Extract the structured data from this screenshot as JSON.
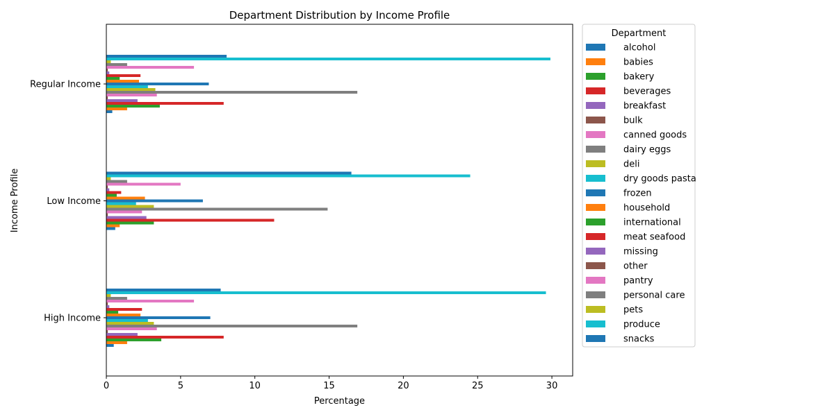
{
  "chart_data": {
    "type": "bar",
    "orientation": "horizontal",
    "title": "Department Distribution by Income Profile",
    "xlabel": "Percentage",
    "ylabel": "Income Profile",
    "xlim": [
      0,
      31.4
    ],
    "xticks": [
      0,
      5,
      10,
      15,
      20,
      25,
      30
    ],
    "grid": false,
    "legend_title": "Department",
    "legend_position": "outside-right",
    "categories": [
      "High Income",
      "Low Income",
      "Regular Income"
    ],
    "series": [
      {
        "name": "alcohol",
        "color": "#1f77b4",
        "values": [
          0.5,
          0.6,
          0.4
        ]
      },
      {
        "name": "babies",
        "color": "#ff7f0e",
        "values": [
          1.4,
          0.9,
          1.4
        ]
      },
      {
        "name": "bakery",
        "color": "#2ca02c",
        "values": [
          3.7,
          3.2,
          3.6
        ]
      },
      {
        "name": "beverages",
        "color": "#d62728",
        "values": [
          7.9,
          11.3,
          7.9
        ]
      },
      {
        "name": "breakfast",
        "color": "#9467bd",
        "values": [
          2.1,
          2.7,
          2.1
        ]
      },
      {
        "name": "bulk",
        "color": "#8c564b",
        "values": [
          0.1,
          0.1,
          0.1
        ]
      },
      {
        "name": "canned goods",
        "color": "#e377c2",
        "values": [
          3.4,
          2.4,
          3.4
        ]
      },
      {
        "name": "dairy eggs",
        "color": "#7f7f7f",
        "values": [
          16.9,
          14.9,
          16.9
        ]
      },
      {
        "name": "deli",
        "color": "#bcbd22",
        "values": [
          3.2,
          3.2,
          3.3
        ]
      },
      {
        "name": "dry goods pasta",
        "color": "#17becf",
        "values": [
          2.8,
          2.0,
          2.8
        ]
      },
      {
        "name": "frozen",
        "color": "#1f77b4",
        "values": [
          7.0,
          6.5,
          6.9
        ]
      },
      {
        "name": "household",
        "color": "#ff7f0e",
        "values": [
          2.3,
          2.6,
          2.2
        ]
      },
      {
        "name": "international",
        "color": "#2ca02c",
        "values": [
          0.8,
          0.7,
          0.9
        ]
      },
      {
        "name": "meat seafood",
        "color": "#d62728",
        "values": [
          2.4,
          1.0,
          2.3
        ]
      },
      {
        "name": "missing",
        "color": "#9467bd",
        "values": [
          0.2,
          0.2,
          0.2
        ]
      },
      {
        "name": "other",
        "color": "#8c564b",
        "values": [
          0.1,
          0.1,
          0.1
        ]
      },
      {
        "name": "pantry",
        "color": "#e377c2",
        "values": [
          5.9,
          5.0,
          5.9
        ]
      },
      {
        "name": "personal care",
        "color": "#7f7f7f",
        "values": [
          1.4,
          1.4,
          1.4
        ]
      },
      {
        "name": "pets",
        "color": "#bcbd22",
        "values": [
          0.3,
          0.3,
          0.3
        ]
      },
      {
        "name": "produce",
        "color": "#17becf",
        "values": [
          29.6,
          24.5,
          29.9
        ]
      },
      {
        "name": "snacks",
        "color": "#1f77b4",
        "values": [
          7.7,
          16.5,
          8.1
        ]
      }
    ]
  }
}
